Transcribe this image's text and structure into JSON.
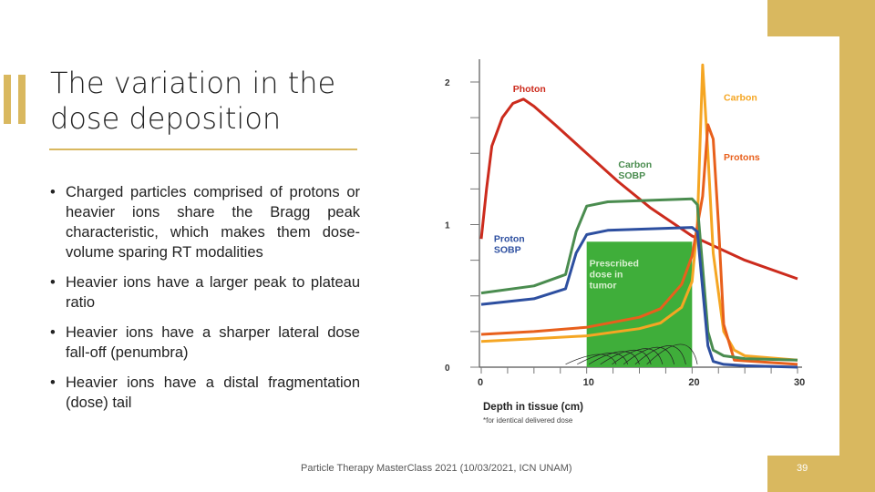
{
  "slide": {
    "title_lines": [
      "The variation in the",
      "dose deposition"
    ],
    "bullets": [
      "Charged particles comprised of protons or heavier ions share the Bragg peak characteristic, which makes them dose-volume sparing RT modalities",
      "Heavier ions have a larger peak to plateau ratio",
      "Heavier ions have a sharper lateral dose fall-off (penumbra)",
      "Heavier ions have a distal fragmentation (dose) tail"
    ],
    "bullet_glyph": "•",
    "footer": "Particle Therapy MasterClass 2021 (10/03/2021, ICN UNAM)",
    "page_number": "39",
    "accent_color": "#d9b85f"
  },
  "chart_data": {
    "type": "line",
    "xlabel": "Depth in tissue (cm)",
    "footnote": "*for identical delivered dose",
    "xlim": [
      0,
      30
    ],
    "ylim": [
      0,
      2
    ],
    "x_ticks": [
      "0",
      "10",
      "20",
      "30"
    ],
    "y_ticks": [
      "0",
      "1",
      "2"
    ],
    "series": [
      {
        "name": "Photon",
        "color": "#cc2b1d",
        "x": [
          0,
          0.5,
          1,
          2,
          3,
          4,
          5,
          7,
          10,
          13,
          16,
          20,
          25,
          30
        ],
        "y": [
          0.9,
          1.25,
          1.55,
          1.75,
          1.85,
          1.88,
          1.83,
          1.7,
          1.5,
          1.3,
          1.12,
          0.92,
          0.75,
          0.62
        ]
      },
      {
        "name": "Carbon",
        "color": "#f5a623",
        "x": [
          0,
          5,
          10,
          15,
          17,
          19,
          20,
          20.5,
          21,
          21.5,
          22,
          23,
          24,
          25,
          30
        ],
        "y": [
          0.18,
          0.2,
          0.22,
          0.27,
          0.31,
          0.42,
          0.6,
          1.0,
          2.12,
          1.5,
          0.8,
          0.25,
          0.12,
          0.08,
          0.05
        ]
      },
      {
        "name": "Protons",
        "color": "#e8601c",
        "x": [
          0,
          5,
          10,
          15,
          17,
          19,
          20,
          21,
          21.5,
          22,
          22.5,
          23,
          24,
          30
        ],
        "y": [
          0.23,
          0.25,
          0.28,
          0.35,
          0.41,
          0.58,
          0.78,
          1.2,
          1.7,
          1.6,
          1.0,
          0.3,
          0.05,
          0.02
        ]
      },
      {
        "name": "Carbon SOBP",
        "color": "#4a8c4f",
        "x": [
          0,
          5,
          8,
          9,
          10,
          12,
          20,
          20.5,
          21,
          21.5,
          22,
          23,
          25,
          30
        ],
        "y": [
          0.52,
          0.57,
          0.65,
          0.95,
          1.13,
          1.16,
          1.18,
          1.14,
          0.7,
          0.25,
          0.12,
          0.08,
          0.06,
          0.05
        ]
      },
      {
        "name": "Proton SOBP",
        "color": "#2d4fa0",
        "x": [
          0,
          5,
          8,
          9,
          10,
          12,
          20,
          20.5,
          21,
          21.5,
          22,
          23,
          25,
          30
        ],
        "y": [
          0.44,
          0.48,
          0.55,
          0.8,
          0.93,
          0.96,
          0.98,
          0.95,
          0.55,
          0.15,
          0.04,
          0.02,
          0.01,
          0.0
        ]
      }
    ],
    "annotations": {
      "prescribed": [
        "Prescribed",
        "dose in",
        "tumor"
      ],
      "prescribed_range": [
        10,
        20
      ],
      "prescribed_dose": 0.88
    }
  }
}
